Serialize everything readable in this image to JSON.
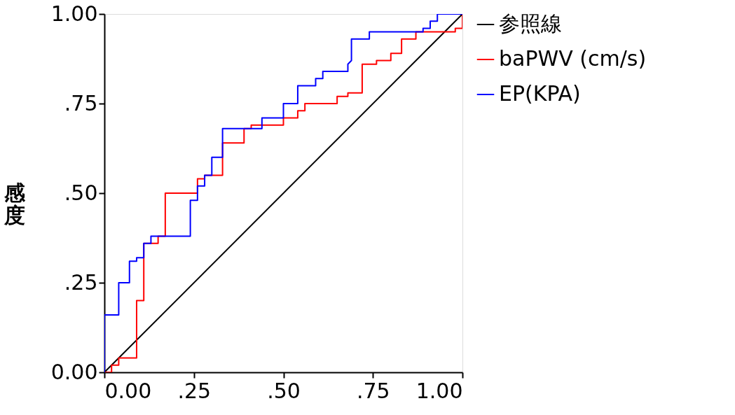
{
  "chart_data": {
    "type": "line",
    "ylabel": "感度",
    "xlim": [
      0,
      1
    ],
    "ylim": [
      0,
      1
    ],
    "xticks": [
      {
        "value": 0,
        "label": "0.00"
      },
      {
        "value": 0.25,
        "label": ".25"
      },
      {
        "value": 0.5,
        "label": ".50"
      },
      {
        "value": 0.75,
        "label": ".75"
      },
      {
        "value": 1,
        "label": "1.00"
      }
    ],
    "yticks": [
      {
        "value": 0,
        "label": "0.00"
      },
      {
        "value": 0.25,
        "label": ".25"
      },
      {
        "value": 0.5,
        "label": ".50"
      },
      {
        "value": 0.75,
        "label": ".75"
      },
      {
        "value": 1,
        "label": "1.00"
      }
    ],
    "grid": false,
    "legend": "right",
    "marker": "none",
    "line_style": "solid",
    "series": [
      {
        "name": "参照線",
        "color": "#000000",
        "x": [
          0,
          1
        ],
        "values": [
          0,
          1
        ]
      },
      {
        "name": "baPWV (cm/s)",
        "color": "#ff0000",
        "x": [
          0,
          0.02,
          0.02,
          0.04,
          0.04,
          0.09,
          0.09,
          0.11,
          0.11,
          0.15,
          0.15,
          0.17,
          0.17,
          0.26,
          0.26,
          0.28,
          0.28,
          0.33,
          0.33,
          0.39,
          0.39,
          0.41,
          0.41,
          0.5,
          0.5,
          0.54,
          0.54,
          0.56,
          0.56,
          0.65,
          0.65,
          0.68,
          0.68,
          0.72,
          0.72,
          0.76,
          0.76,
          0.8,
          0.8,
          0.83,
          0.83,
          0.87,
          0.87,
          0.98,
          0.98,
          1,
          1
        ],
        "values": [
          0,
          0,
          0.02,
          0.02,
          0.04,
          0.04,
          0.2,
          0.2,
          0.36,
          0.36,
          0.38,
          0.38,
          0.5,
          0.5,
          0.54,
          0.54,
          0.55,
          0.55,
          0.64,
          0.64,
          0.68,
          0.68,
          0.69,
          0.69,
          0.71,
          0.71,
          0.73,
          0.73,
          0.75,
          0.75,
          0.77,
          0.77,
          0.78,
          0.78,
          0.86,
          0.86,
          0.87,
          0.87,
          0.89,
          0.89,
          0.93,
          0.93,
          0.95,
          0.95,
          0.96,
          0.96,
          1
        ]
      },
      {
        "name": "EP(KPA)",
        "color": "#0000ff",
        "x": [
          0,
          0,
          0.04,
          0.04,
          0.07,
          0.07,
          0.09,
          0.09,
          0.11,
          0.11,
          0.13,
          0.13,
          0.24,
          0.24,
          0.26,
          0.26,
          0.28,
          0.28,
          0.3,
          0.3,
          0.33,
          0.33,
          0.44,
          0.44,
          0.5,
          0.5,
          0.54,
          0.54,
          0.59,
          0.59,
          0.61,
          0.61,
          0.68,
          0.68,
          0.69,
          0.69,
          0.74,
          0.74,
          0.89,
          0.89,
          0.91,
          0.91,
          0.93,
          0.93,
          1
        ],
        "values": [
          0,
          0.16,
          0.16,
          0.25,
          0.25,
          0.31,
          0.31,
          0.32,
          0.32,
          0.36,
          0.36,
          0.38,
          0.38,
          0.48,
          0.48,
          0.52,
          0.52,
          0.55,
          0.55,
          0.6,
          0.6,
          0.68,
          0.68,
          0.71,
          0.71,
          0.75,
          0.75,
          0.8,
          0.8,
          0.82,
          0.82,
          0.84,
          0.84,
          0.86,
          0.87,
          0.93,
          0.93,
          0.95,
          0.95,
          0.96,
          0.96,
          0.98,
          0.98,
          1,
          1
        ]
      }
    ]
  }
}
